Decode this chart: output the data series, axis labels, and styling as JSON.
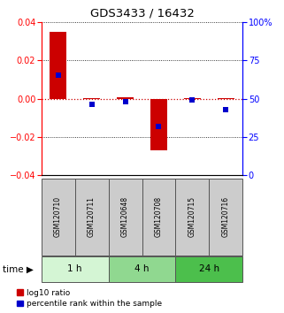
{
  "title": "GDS3433 / 16432",
  "samples": [
    "GSM120710",
    "GSM120711",
    "GSM120648",
    "GSM120708",
    "GSM120715",
    "GSM120716"
  ],
  "log10_ratio": [
    0.035,
    0.0003,
    0.0005,
    -0.027,
    0.0001,
    0.0003
  ],
  "percentile_rank": [
    65,
    46,
    48,
    32,
    49,
    43
  ],
  "ylim_left": [
    -0.04,
    0.04
  ],
  "ylim_right": [
    0,
    100
  ],
  "yticks_left": [
    -0.04,
    -0.02,
    0,
    0.02,
    0.04
  ],
  "yticks_right": [
    0,
    25,
    50,
    75,
    100
  ],
  "ytick_labels_right": [
    "0",
    "25",
    "50",
    "75",
    "100%"
  ],
  "time_groups": [
    {
      "label": "1 h",
      "start": 0,
      "end": 2,
      "color": "#d4f5d4"
    },
    {
      "label": "4 h",
      "start": 2,
      "end": 4,
      "color": "#90d890"
    },
    {
      "label": "24 h",
      "start": 4,
      "end": 6,
      "color": "#4cbf4c"
    }
  ],
  "bar_color": "#cc0000",
  "square_color": "#0000cc",
  "bar_width": 0.5,
  "square_size": 18,
  "dotted_line_color": "#cc0000",
  "sample_box_color": "#cccccc",
  "sample_box_edge_color": "#555555",
  "background_color": "#ffffff",
  "title_fontsize": 9.5,
  "tick_fontsize": 7,
  "label_fontsize": 7.5,
  "legend_fontsize": 6.5,
  "sample_fontsize": 5.5
}
